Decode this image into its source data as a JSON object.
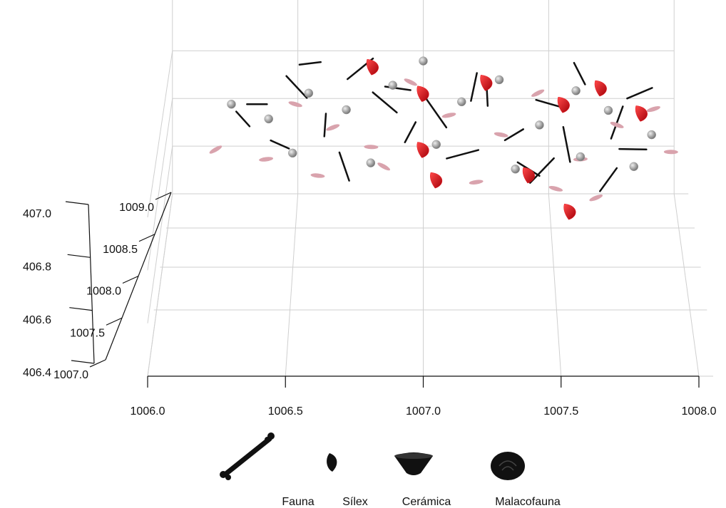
{
  "chart_data": {
    "type": "scatter3d",
    "xlim": [
      1006.0,
      1008.0
    ],
    "ylim": [
      1007.0,
      1009.0
    ],
    "zlim": [
      406.4,
      407.0
    ],
    "xticks": [
      {
        "value": 1006.0,
        "label": "1006.0"
      },
      {
        "value": 1006.5,
        "label": "1006.5"
      },
      {
        "value": 1007.0,
        "label": "1007.0"
      },
      {
        "value": 1007.5,
        "label": "1007.5"
      },
      {
        "value": 1008.0,
        "label": "1008.0"
      }
    ],
    "yticks": [
      {
        "value": 1007.0,
        "label": "1007.0"
      },
      {
        "value": 1007.5,
        "label": "1007.5"
      },
      {
        "value": 1008.0,
        "label": "1008.0"
      },
      {
        "value": 1008.5,
        "label": "1008.5"
      },
      {
        "value": 1009.0,
        "label": "1009.0"
      }
    ],
    "zticks": [
      {
        "value": 406.4,
        "label": "406.4"
      },
      406.6,
      406.8,
      {
        "value": 407.0,
        "label": "407.0"
      }
    ],
    "grid": true,
    "series": [
      {
        "name": "Fauna",
        "color": "#111111",
        "x": [
          1006.35,
          1006.5,
          1006.62,
          1006.75,
          1006.9,
          1007.05,
          1007.2,
          1007.35,
          1007.5,
          1007.62,
          1007.75,
          1007.85,
          1006.45,
          1006.7,
          1006.95,
          1007.15,
          1007.4,
          1007.55,
          1007.7,
          1006.55,
          1006.85,
          1007.25,
          1007.45,
          1007.8,
          1006.3
        ],
        "y": [
          1008.6,
          1008.8,
          1008.4,
          1008.9,
          1008.7,
          1008.5,
          1008.8,
          1008.3,
          1008.6,
          1008.9,
          1008.4,
          1008.7,
          1008.2,
          1008.0,
          1008.3,
          1008.1,
          1008.0,
          1008.2,
          1007.9,
          1008.95,
          1008.55,
          1008.65,
          1007.95,
          1008.1,
          1008.45
        ],
        "z": [
          406.88,
          406.9,
          406.85,
          406.95,
          406.92,
          406.87,
          406.9,
          406.84,
          406.88,
          406.93,
          406.86,
          406.9,
          406.83,
          406.8,
          406.85,
          406.82,
          406.79,
          406.83,
          406.78,
          406.96,
          406.9,
          406.91,
          406.8,
          406.84,
          406.86
        ]
      },
      {
        "name": "Sílex",
        "color": "#e8101a",
        "x": [
          1006.8,
          1007.0,
          1007.25,
          1007.55,
          1007.7,
          1007.85,
          1007.0,
          1007.4,
          1007.55,
          1007.05
        ],
        "y": [
          1008.9,
          1008.7,
          1008.8,
          1008.6,
          1008.75,
          1008.5,
          1008.1,
          1007.9,
          1007.7,
          1007.9
        ],
        "z": [
          406.96,
          406.9,
          406.92,
          406.88,
          406.91,
          406.87,
          406.84,
          406.8,
          406.72,
          406.78
        ]
      },
      {
        "name": "Cerámica",
        "color": "#d9a3ad",
        "x": [
          1006.2,
          1006.4,
          1006.5,
          1006.65,
          1006.8,
          1006.95,
          1007.1,
          1007.3,
          1007.45,
          1007.6,
          1007.75,
          1007.9,
          1006.6,
          1006.85,
          1007.2,
          1007.5,
          1007.65,
          1007.95
        ],
        "y": [
          1008.3,
          1008.1,
          1008.6,
          1008.4,
          1008.2,
          1008.8,
          1008.5,
          1008.3,
          1008.7,
          1008.1,
          1008.4,
          1008.6,
          1007.95,
          1008.0,
          1007.9,
          1007.85,
          1007.8,
          1008.2
        ],
        "z": [
          406.78,
          406.8,
          406.88,
          406.84,
          406.82,
          406.92,
          406.86,
          406.84,
          406.9,
          406.8,
          406.85,
          406.86,
          406.78,
          406.8,
          406.77,
          406.76,
          406.74,
          406.8
        ]
      },
      {
        "name": "Malacofauna",
        "color": "#9a9a9a",
        "x": [
          1006.25,
          1006.4,
          1006.55,
          1006.7,
          1006.88,
          1007.0,
          1007.15,
          1007.3,
          1007.45,
          1007.6,
          1007.72,
          1007.88,
          1006.5,
          1006.8,
          1007.05,
          1007.35,
          1007.6,
          1007.8
        ],
        "y": [
          1008.6,
          1008.45,
          1008.7,
          1008.55,
          1008.75,
          1008.95,
          1008.6,
          1008.8,
          1008.4,
          1008.7,
          1008.5,
          1008.3,
          1008.15,
          1008.05,
          1008.2,
          1008.0,
          1008.1,
          1008.0
        ],
        "z": [
          406.88,
          406.86,
          406.9,
          406.87,
          406.92,
          406.97,
          406.89,
          406.93,
          406.85,
          406.91,
          406.88,
          406.84,
          406.81,
          406.8,
          406.83,
          406.79,
          406.81,
          406.8
        ]
      }
    ]
  }
}
